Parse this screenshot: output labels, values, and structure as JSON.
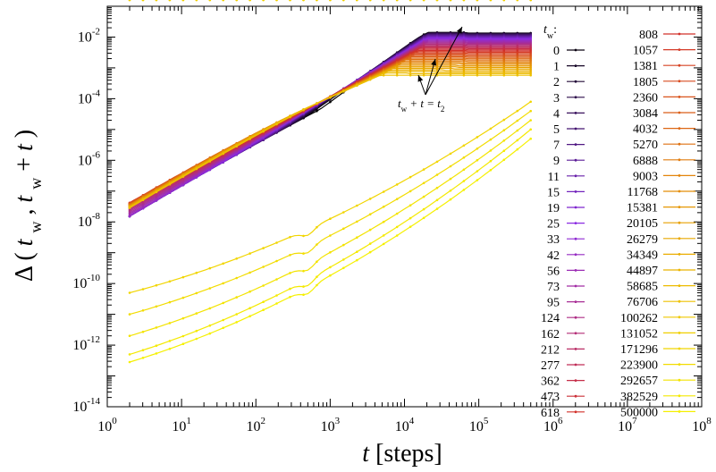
{
  "chart_data": {
    "type": "line",
    "title": "",
    "x_scale": "log",
    "y_scale": "log",
    "xlim": [
      1,
      100000000
    ],
    "ylim": [
      1e-14,
      0.1
    ],
    "xlabel_parts": {
      "var": "t",
      "unit": "[steps]"
    },
    "ylabel_parts": {
      "sym": "Δ",
      "open": "(",
      "tw1": "t",
      "sep": ", ",
      "tw2": "t",
      "plus": " + ",
      "tvar": "t",
      "close": ")",
      "sub": "w"
    },
    "x_tick_base": "10",
    "x_tick_exponents": [
      "0",
      "1",
      "2",
      "3",
      "4",
      "5",
      "6",
      "7",
      "8"
    ],
    "y_tick_base": "10",
    "y_tick_exponents": [
      "-2",
      "-4",
      "-6",
      "-8",
      "-10",
      "-12",
      "-14"
    ],
    "grid": false,
    "legend": {
      "title_var": "t",
      "title_sub": "w",
      "title_suffix": ":",
      "placement": "right",
      "column1": [
        "0",
        "1",
        "2",
        "3",
        "4",
        "5",
        "7",
        "9",
        "11",
        "15",
        "19",
        "25",
        "33",
        "42",
        "56",
        "73",
        "95",
        "124",
        "162",
        "212",
        "277",
        "362",
        "473",
        "618"
      ],
      "column2": [
        "808",
        "1057",
        "1381",
        "1805",
        "2360",
        "3084",
        "4032",
        "5270",
        "6888",
        "9003",
        "11768",
        "15381",
        "20105",
        "26279",
        "34349",
        "44897",
        "58685",
        "76706",
        "100262",
        "131052",
        "171296",
        "223900",
        "292657",
        "382529",
        "500000"
      ]
    },
    "annotation": {
      "left": "t",
      "left_sub": "w",
      "middle": " + t = ",
      "right": "t",
      "right_sub": "2"
    },
    "series_family": {
      "tw_values": [
        0,
        1,
        2,
        3,
        4,
        5,
        7,
        9,
        11,
        15,
        19,
        25,
        33,
        42,
        56,
        73,
        95,
        124,
        162,
        212,
        277,
        362,
        473,
        618,
        808,
        1057,
        1381,
        1805,
        2360,
        3084,
        4032,
        5270,
        6888,
        9003,
        11768,
        15381,
        20105,
        26279,
        34349,
        44897,
        58685,
        76706,
        100262,
        131052,
        171296,
        223900,
        292657,
        382529,
        500000
      ],
      "t_range": [
        2,
        500000
      ],
      "note_values": "each curve Δ(tw, tw+t) vs t; values estimated from plot",
      "start_values_at_t2": {
        "tw_0": 1.5e-09,
        "tw_618": 1.5e-07,
        "tw_100262": 5e-11,
        "tw_131052": 1e-11,
        "tw_171296": 2e-12,
        "tw_223900": 5e-13,
        "tw_292657": 3e-13,
        "tw_382529": 2e-13,
        "tw_500000": 1e-13
      },
      "end_values_at_t500000": {
        "tw_0": 0.013,
        "tw_618": 0.011,
        "tw_5270": 0.004,
        "tw_76706": 0.00045,
        "tw_100262": 8e-05,
        "tw_131052": 4e-05,
        "tw_171296": 2e-05,
        "tw_223900": 1e-05,
        "tw_292657": 5e-06,
        "tw_382529": 3e-06,
        "tw_500000": 2e-06
      }
    },
    "colors": {
      "palette_start": "#000000",
      "palette_mid1": "#8a2be2",
      "palette_mid2": "#d2302a",
      "palette_mid3": "#e8a000",
      "palette_end": "#f5f000"
    }
  }
}
